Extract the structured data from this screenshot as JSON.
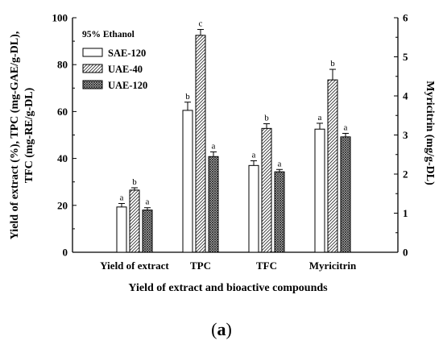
{
  "chart_data": {
    "type": "bar",
    "categories": [
      "Yield of extract",
      "TPC",
      "TFC",
      "Myricitrin"
    ],
    "series": [
      {
        "name": "SAE-120",
        "pattern": "white",
        "values": [
          19.3,
          60.5,
          37.0,
          52.5
        ],
        "errors": [
          1.5,
          3.5,
          2.0,
          2.5
        ],
        "sig": [
          "a",
          "b",
          "a",
          "a"
        ]
      },
      {
        "name": "UAE-40",
        "pattern": "diagonal",
        "values": [
          26.5,
          92.5,
          52.8,
          73.5
        ],
        "errors": [
          1.0,
          2.5,
          2.0,
          4.5
        ],
        "sig": [
          "b",
          "c",
          "b",
          "b"
        ]
      },
      {
        "name": "UAE-120",
        "pattern": "crosshatch",
        "values": [
          18.0,
          40.8,
          34.3,
          49.2
        ],
        "errors": [
          1.0,
          2.0,
          1.0,
          1.5
        ],
        "sig": [
          "a",
          "a",
          "a",
          "a"
        ]
      }
    ],
    "legend_title": "95% Ethanol",
    "legend_position": "top-left",
    "y_left": {
      "label_line1": "Yield of extract (%), TPC (mg-GAE/g-DL),",
      "label_line2": "TFC (mg-RE/g-DL)",
      "lim": [
        0,
        100
      ],
      "ticks": [
        "0",
        "20",
        "40",
        "60",
        "80",
        "100"
      ]
    },
    "y_right": {
      "label": "Myricitrin (mg/g-DL)",
      "lim": [
        0,
        6
      ],
      "ticks": [
        "0",
        "1",
        "2",
        "3",
        "4",
        "5",
        "6"
      ]
    },
    "xlabel": "Yield of extract and bioactive compounds",
    "grid": false
  },
  "caption": {
    "open": "(",
    "letter": "a",
    "close": ")"
  }
}
